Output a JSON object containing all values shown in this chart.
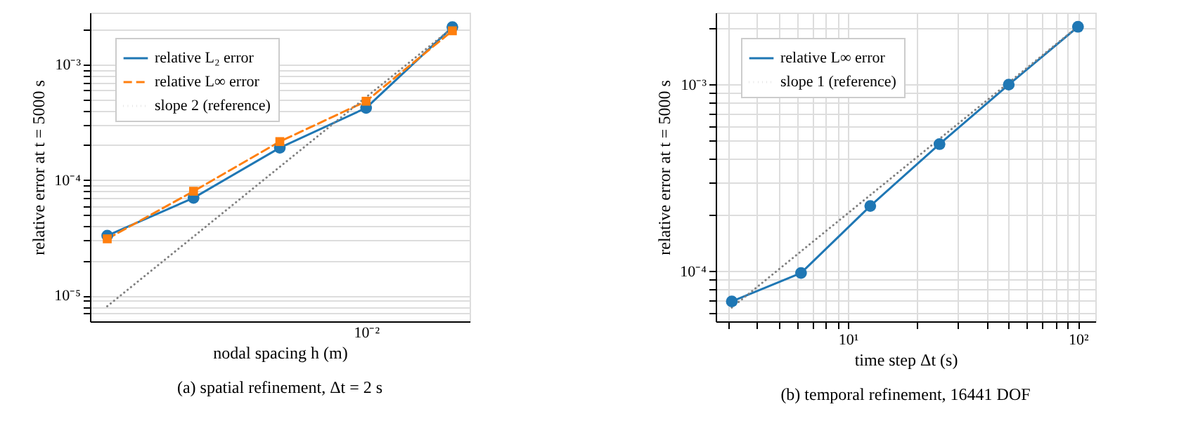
{
  "chart_data": [
    {
      "type": "line",
      "title": "(a) spatial refinement, Δt = 2 s",
      "xlabel": "nodal spacing h (m)",
      "ylabel": "relative error at t = 5000 s",
      "log": "y",
      "grid": "y",
      "legend": "top left",
      "categories": [
        null,
        null,
        null,
        "10⁻²",
        null
      ],
      "ylim": [
        6e-06,
        0.0028
      ],
      "yticks": [
        {
          "value": 7e-06,
          "label": null
        },
        {
          "value": 8e-06,
          "label": null
        },
        {
          "value": 9e-06,
          "label": null
        },
        {
          "value": 1e-05,
          "label": "10⁻⁵"
        },
        {
          "value": 2e-05,
          "label": null
        },
        {
          "value": 3e-05,
          "label": null
        },
        {
          "value": 4e-05,
          "label": null
        },
        {
          "value": 5e-05,
          "label": null
        },
        {
          "value": 6e-05,
          "label": null
        },
        {
          "value": 7e-05,
          "label": null
        },
        {
          "value": 8e-05,
          "label": null
        },
        {
          "value": 9e-05,
          "label": null
        },
        {
          "value": 0.0001,
          "label": "10⁻⁴"
        },
        {
          "value": 0.0002,
          "label": null
        },
        {
          "value": 0.0003,
          "label": null
        },
        {
          "value": 0.0004,
          "label": null
        },
        {
          "value": 0.0005,
          "label": null
        },
        {
          "value": 0.0006,
          "label": null
        },
        {
          "value": 0.0007,
          "label": null
        },
        {
          "value": 0.0008,
          "label": null
        },
        {
          "value": 0.0009,
          "label": null
        },
        {
          "value": 0.001,
          "label": "10⁻³"
        },
        {
          "value": 0.002,
          "label": null
        }
      ],
      "series": [
        {
          "name": "relative L₂ error",
          "color": "#1f77b4",
          "marker": "circle",
          "line_style": "solid",
          "values": [
            3.3e-05,
            7e-05,
            0.00019,
            0.00042,
            0.0021
          ]
        },
        {
          "name": "relative L∞ error",
          "color": "#ff7f0e",
          "marker": "square",
          "line_style": "dashed",
          "values": [
            3.1e-05,
            8e-05,
            0.000215,
            0.00048,
            0.00195
          ]
        },
        {
          "name": "slope 2 (reference)",
          "color": "#808080",
          "marker": "none",
          "line_style": "dotted",
          "values": [
            8.1e-06,
            3.24e-05,
            0.00013,
            0.00052,
            0.00207
          ]
        }
      ]
    },
    {
      "type": "line",
      "title": "(b) temporal refinement, 16441 DOF",
      "xlabel": "time step Δt (s)",
      "ylabel": "relative error at t = 5000 s",
      "log": "xy",
      "grid": true,
      "legend": "top left",
      "xlim": [
        2.66,
        119
      ],
      "ylim": [
        5.4e-05,
        0.00243
      ],
      "xticks": [
        {
          "value": 3,
          "label": null
        },
        {
          "value": 4,
          "label": null
        },
        {
          "value": 5,
          "label": null
        },
        {
          "value": 6,
          "label": null
        },
        {
          "value": 7,
          "label": null
        },
        {
          "value": 8,
          "label": null
        },
        {
          "value": 9,
          "label": null
        },
        {
          "value": 10,
          "label": "10¹"
        },
        {
          "value": 20,
          "label": null
        },
        {
          "value": 30,
          "label": null
        },
        {
          "value": 40,
          "label": null
        },
        {
          "value": 50,
          "label": null
        },
        {
          "value": 60,
          "label": null
        },
        {
          "value": 70,
          "label": null
        },
        {
          "value": 80,
          "label": null
        },
        {
          "value": 90,
          "label": null
        },
        {
          "value": 100,
          "label": "10²"
        }
      ],
      "yticks": [
        {
          "value": 6e-05,
          "label": null
        },
        {
          "value": 7e-05,
          "label": null
        },
        {
          "value": 8e-05,
          "label": null
        },
        {
          "value": 9e-05,
          "label": null
        },
        {
          "value": 0.0001,
          "label": "10⁻⁴"
        },
        {
          "value": 0.0002,
          "label": null
        },
        {
          "value": 0.0003,
          "label": null
        },
        {
          "value": 0.0004,
          "label": null
        },
        {
          "value": 0.0005,
          "label": null
        },
        {
          "value": 0.0006,
          "label": null
        },
        {
          "value": 0.0007,
          "label": null
        },
        {
          "value": 0.0008,
          "label": null
        },
        {
          "value": 0.0009,
          "label": null
        },
        {
          "value": 0.001,
          "label": "10⁻³"
        },
        {
          "value": 0.002,
          "label": null
        }
      ],
      "series": [
        {
          "name": "relative L∞ error",
          "color": "#1f77b4",
          "marker": "circle",
          "line_style": "solid",
          "x": [
            3.125,
            6.25,
            12.5,
            25,
            50,
            100
          ],
          "values": [
            6.9e-05,
            9.8e-05,
            0.000224,
            0.00048,
            0.001,
            0.00204
          ]
        },
        {
          "name": "slope 1 (reference)",
          "color": "#808080",
          "marker": "none",
          "line_style": "dotted",
          "x": [
            3.125,
            100
          ],
          "values": [
            6.4e-05,
            0.00205
          ]
        }
      ]
    }
  ]
}
